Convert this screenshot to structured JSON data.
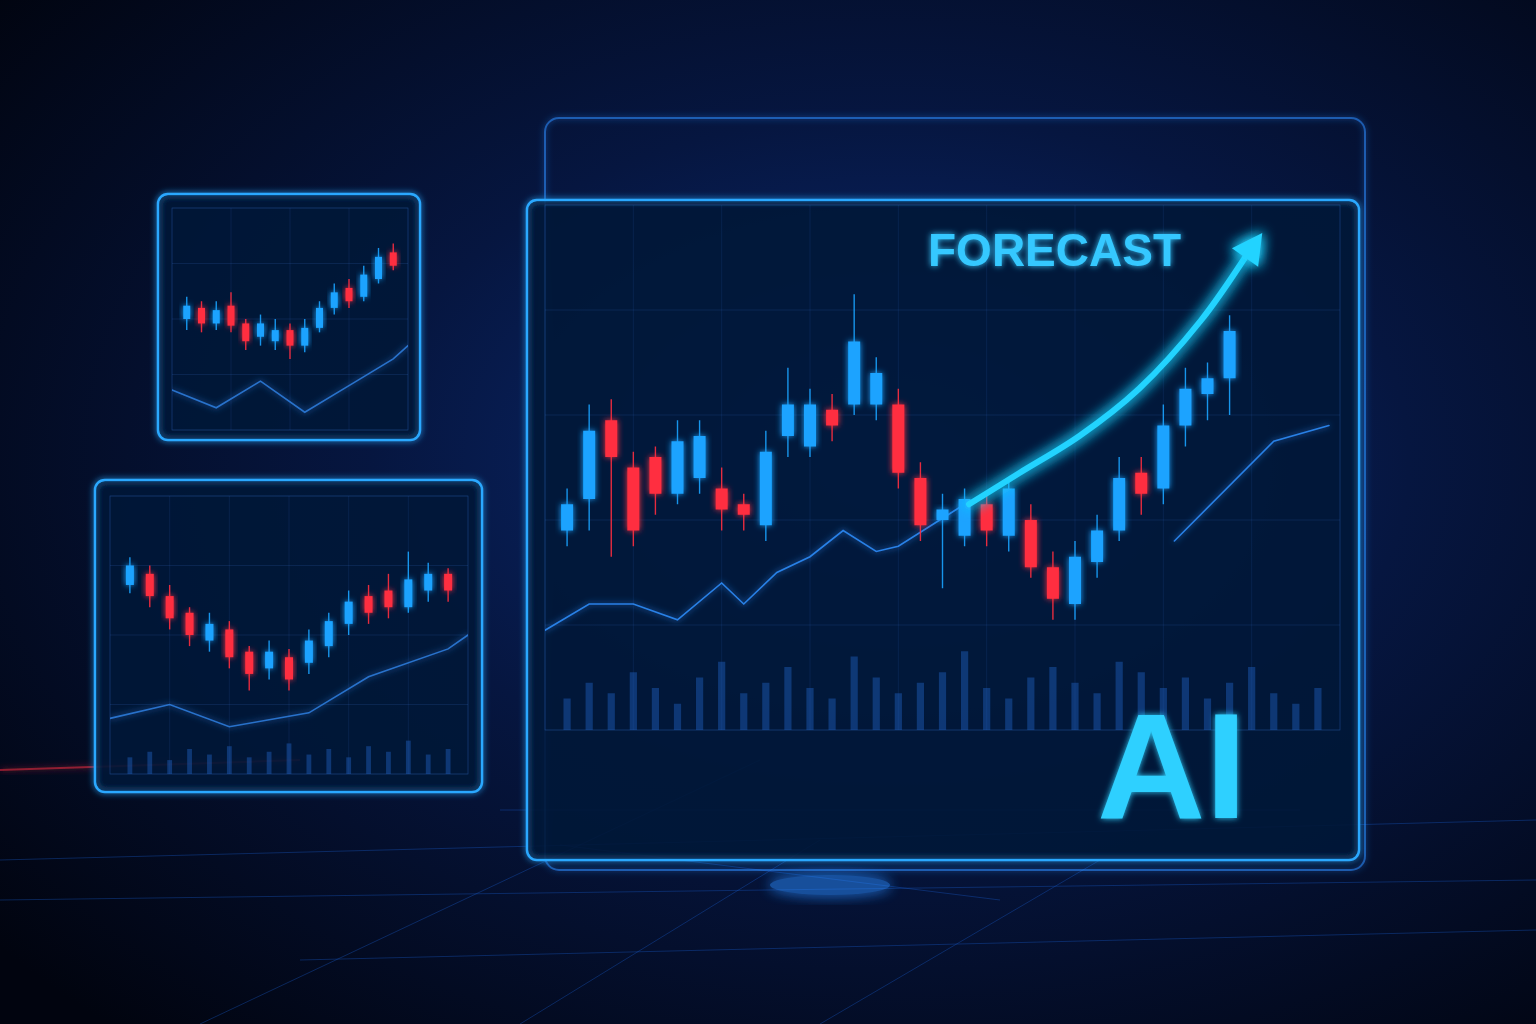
{
  "chart_data": [
    {
      "type": "candlestick",
      "x": [
        1,
        2,
        3,
        4,
        5,
        6,
        7,
        8,
        9,
        10,
        11,
        12,
        13,
        14,
        15
      ],
      "open": [
        50,
        55,
        48,
        56,
        48,
        42,
        40,
        45,
        38,
        46,
        55,
        64,
        60,
        68,
        80
      ],
      "close": [
        56,
        48,
        54,
        47,
        40,
        48,
        45,
        38,
        46,
        55,
        62,
        58,
        70,
        78,
        74
      ],
      "high": [
        60,
        58,
        58,
        62,
        50,
        52,
        50,
        48,
        50,
        58,
        66,
        68,
        74,
        82,
        84
      ],
      "low": [
        45,
        44,
        45,
        44,
        36,
        38,
        36,
        32,
        35,
        44,
        52,
        55,
        58,
        66,
        72
      ],
      "colors": [
        "#1aa3ff",
        "#ff2d3f",
        "#1aa3ff",
        "#ff2d3f",
        "#ff2d3f",
        "#1aa3ff",
        "#1aa3ff",
        "#ff2d3f",
        "#1aa3ff",
        "#1aa3ff",
        "#1aa3ff",
        "#ff2d3f",
        "#1aa3ff",
        "#1aa3ff",
        "#ff2d3f"
      ],
      "series": [
        {
          "type": "line",
          "color": "#2f7fe0",
          "x": [
            0,
            3,
            6,
            9,
            12,
            15,
            16
          ],
          "values": [
            18,
            10,
            22,
            8,
            20,
            32,
            38
          ]
        }
      ],
      "xlim": [
        0,
        16
      ],
      "xticks": [
        0,
        4,
        8,
        12,
        16
      ],
      "ylim": [
        0,
        100
      ],
      "yticks": [
        0,
        25,
        50,
        75,
        100
      ],
      "grid": true,
      "tick_labels": false
    },
    {
      "type": "candlestick",
      "x": [
        1,
        2,
        3,
        4,
        5,
        6,
        7,
        8,
        9,
        10,
        11,
        12,
        13,
        14,
        15,
        16,
        17
      ],
      "open": [
        68,
        72,
        64,
        58,
        48,
        52,
        44,
        38,
        42,
        40,
        46,
        54,
        64,
        66,
        60,
        66,
        72
      ],
      "close": [
        75,
        64,
        56,
        50,
        54,
        42,
        36,
        44,
        34,
        48,
        55,
        62,
        58,
        60,
        70,
        72,
        66
      ],
      "high": [
        78,
        75,
        68,
        60,
        58,
        55,
        46,
        48,
        45,
        52,
        58,
        66,
        68,
        72,
        80,
        76,
        74
      ],
      "low": [
        65,
        60,
        52,
        46,
        44,
        38,
        30,
        34,
        30,
        36,
        42,
        50,
        54,
        56,
        58,
        62,
        62
      ],
      "colors": [
        "#1aa3ff",
        "#ff2d3f",
        "#ff2d3f",
        "#ff2d3f",
        "#1aa3ff",
        "#ff2d3f",
        "#ff2d3f",
        "#1aa3ff",
        "#ff2d3f",
        "#1aa3ff",
        "#1aa3ff",
        "#1aa3ff",
        "#ff2d3f",
        "#ff2d3f",
        "#1aa3ff",
        "#1aa3ff",
        "#ff2d3f"
      ],
      "series": [
        {
          "type": "bar",
          "color": "#1f5fbf",
          "x": [
            1,
            2,
            3,
            4,
            5,
            6,
            7,
            8,
            9,
            10,
            11,
            12,
            13,
            14,
            15,
            16,
            17
          ],
          "values": [
            6,
            8,
            5,
            9,
            7,
            10,
            6,
            8,
            11,
            7,
            9,
            6,
            10,
            8,
            12,
            7,
            9
          ]
        },
        {
          "type": "line",
          "color": "#2f7fe0",
          "x": [
            0,
            3,
            6,
            10,
            13,
            17,
            18
          ],
          "values": [
            20,
            25,
            17,
            22,
            35,
            45,
            50
          ]
        }
      ],
      "xlim": [
        0,
        18
      ],
      "xticks": [
        0,
        3,
        6,
        9,
        12,
        15,
        18
      ],
      "ylim": [
        0,
        100
      ],
      "yticks": [
        0,
        25,
        50,
        75,
        100
      ],
      "grid": true,
      "tick_labels": false
    },
    {
      "type": "candlestick",
      "annotations": [
        "FORECAST",
        "AI"
      ],
      "x": [
        1,
        2,
        3,
        4,
        5,
        6,
        7,
        8,
        9,
        10,
        11,
        12,
        13,
        14,
        15,
        16,
        17,
        18,
        19,
        20,
        21,
        22,
        23,
        24,
        25,
        26,
        27,
        28,
        29,
        30,
        31
      ],
      "open": [
        38,
        44,
        59,
        50,
        52,
        45,
        48,
        46,
        43,
        39,
        56,
        54,
        61,
        62,
        62,
        62,
        48,
        40,
        37,
        43,
        37,
        40,
        31,
        24,
        32,
        38,
        49,
        46,
        58,
        64,
        67
      ],
      "close": [
        43,
        57,
        52,
        38,
        45,
        55,
        56,
        42,
        41,
        53,
        62,
        62,
        58,
        74,
        68,
        49,
        39,
        42,
        44,
        38,
        46,
        31,
        25,
        33,
        38,
        48,
        45,
        58,
        65,
        67,
        76
      ],
      "high": [
        46,
        62,
        63,
        53,
        54,
        59,
        59,
        50,
        45,
        57,
        69,
        65,
        64,
        83,
        71,
        65,
        51,
        45,
        46,
        45,
        48,
        43,
        34,
        36,
        41,
        52,
        52,
        62,
        69,
        70,
        79
      ],
      "low": [
        35,
        38,
        33,
        35,
        41,
        43,
        45,
        38,
        38,
        36,
        52,
        52,
        55,
        60,
        59,
        46,
        36,
        27,
        35,
        35,
        34,
        29,
        21,
        21,
        29,
        36,
        41,
        43,
        54,
        59,
        60
      ],
      "colors": [
        "#1aa3ff",
        "#1aa3ff",
        "#ff2d3f",
        "#ff2d3f",
        "#ff2d3f",
        "#1aa3ff",
        "#1aa3ff",
        "#ff2d3f",
        "#ff2d3f",
        "#1aa3ff",
        "#1aa3ff",
        "#1aa3ff",
        "#ff2d3f",
        "#1aa3ff",
        "#1aa3ff",
        "#ff2d3f",
        "#ff2d3f",
        "#1aa3ff",
        "#1aa3ff",
        "#ff2d3f",
        "#1aa3ff",
        "#ff2d3f",
        "#ff2d3f",
        "#1aa3ff",
        "#1aa3ff",
        "#1aa3ff",
        "#ff2d3f",
        "#1aa3ff",
        "#1aa3ff",
        "#1aa3ff",
        "#1aa3ff"
      ],
      "series": [
        {
          "type": "bar",
          "color": "#1f5fbf",
          "x": [
            1,
            2,
            3,
            4,
            5,
            6,
            7,
            8,
            9,
            10,
            11,
            12,
            13,
            14,
            15,
            16,
            17,
            18,
            19,
            20,
            21,
            22,
            23,
            24,
            25,
            26,
            27,
            28,
            29,
            30,
            31,
            32,
            33,
            34,
            35
          ],
          "values": [
            6,
            9,
            7,
            11,
            8,
            5,
            10,
            13,
            7,
            9,
            12,
            8,
            6,
            14,
            10,
            7,
            9,
            11,
            15,
            8,
            6,
            10,
            12,
            9,
            7,
            13,
            11,
            8,
            10,
            6,
            9,
            12,
            7,
            5,
            8
          ]
        },
        {
          "type": "line",
          "color": "#2f8fff",
          "x": [
            0,
            2,
            4,
            6,
            8,
            9,
            10.5,
            12,
            13.5,
            15,
            16,
            17.5,
            19,
            24,
            28.5,
            33,
            35.5
          ],
          "values": [
            19,
            24,
            24,
            21,
            28,
            24,
            30,
            33,
            38,
            34,
            35,
            39,
            43,
            null,
            36,
            55,
            58
          ]
        },
        {
          "type": "line",
          "color": "#22d3ff",
          "marker": "arrow",
          "x": [
            19.2,
            21.5,
            24.2,
            26.9,
            29.7,
            31.7
          ],
          "values": [
            43,
            49,
            56,
            65,
            78,
            90
          ]
        }
      ],
      "xlim": [
        0,
        36
      ],
      "xticks": [
        0,
        4,
        8,
        12,
        16,
        20,
        24,
        28,
        32,
        36
      ],
      "ylim": [
        0,
        100
      ],
      "yticks": [
        0,
        20,
        40,
        60,
        80,
        100
      ],
      "grid": true,
      "tick_labels": false
    }
  ]
}
